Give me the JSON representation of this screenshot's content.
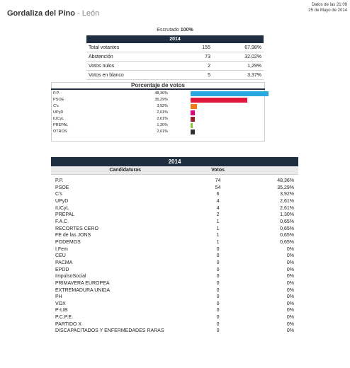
{
  "header": {
    "municipality": "Gordaliza del Pino",
    "province": "- León",
    "date_line1": "Datos de las 21:09",
    "date_line2": "25 de Mayo de 2014"
  },
  "summary": {
    "scrutinized_label": "Escrutado",
    "scrutinized_value": "100%",
    "year": "2014",
    "rows": [
      {
        "label": "Total votantes",
        "value": "155",
        "pct": "67,98%"
      },
      {
        "label": "Abstención",
        "value": "73",
        "pct": "32,02%"
      },
      {
        "label": "Votos nulos",
        "value": "2",
        "pct": "1,29%"
      },
      {
        "label": "Votos en blanco",
        "value": "5",
        "pct": "3,37%"
      }
    ]
  },
  "vote_share": {
    "title": "Porcentaje de votos",
    "rows": [
      {
        "label": "P.P.",
        "pct": "48,36%",
        "share": 48.36,
        "color": "#29a8e0"
      },
      {
        "label": "PSOE",
        "pct": "35,29%",
        "share": 35.29,
        "color": "#e2173d"
      },
      {
        "label": "C's",
        "pct": "3,92%",
        "share": 3.92,
        "color": "#f07d1a"
      },
      {
        "label": "UPyD",
        "pct": "2,61%",
        "share": 2.61,
        "color": "#e4007c"
      },
      {
        "label": "IUCyL",
        "pct": "2,61%",
        "share": 2.61,
        "color": "#9b1f2e"
      },
      {
        "label": "PREPAL",
        "pct": "1,30%",
        "share": 1.3,
        "color": "#8dc63f"
      },
      {
        "label": "OTROS",
        "pct": "2,61%",
        "share": 2.61,
        "color": "#333333"
      }
    ]
  },
  "results": {
    "year": "2014",
    "col_party": "Candidaturas",
    "col_votes": "Votos",
    "rows": [
      {
        "party": "P.P.",
        "votes": "74",
        "pct": "48,36%"
      },
      {
        "party": "PSOE",
        "votes": "54",
        "pct": "35,29%"
      },
      {
        "party": "C's",
        "votes": "6",
        "pct": "3,92%"
      },
      {
        "party": "UPyD",
        "votes": "4",
        "pct": "2,61%"
      },
      {
        "party": "IUCyL",
        "votes": "4",
        "pct": "2,61%"
      },
      {
        "party": "PREPAL",
        "votes": "2",
        "pct": "1,30%"
      },
      {
        "party": "F.A.C.",
        "votes": "1",
        "pct": "0,65%"
      },
      {
        "party": "RECORTES CERO",
        "votes": "1",
        "pct": "0,65%"
      },
      {
        "party": "FE de las JONS",
        "votes": "1",
        "pct": "0,65%"
      },
      {
        "party": "PODEMOS",
        "votes": "1",
        "pct": "0,65%"
      },
      {
        "party": "I.Fem",
        "votes": "0",
        "pct": "0%"
      },
      {
        "party": "CEU",
        "votes": "0",
        "pct": "0%"
      },
      {
        "party": "PACMA",
        "votes": "0",
        "pct": "0%"
      },
      {
        "party": "EPDD",
        "votes": "0",
        "pct": "0%"
      },
      {
        "party": "ImpulsoSocial",
        "votes": "0",
        "pct": "0%"
      },
      {
        "party": "PRIMAVERA EUROPEA",
        "votes": "0",
        "pct": "0%"
      },
      {
        "party": "EXTREMADURA UNIDA",
        "votes": "0",
        "pct": "0%"
      },
      {
        "party": "PH",
        "votes": "0",
        "pct": "0%"
      },
      {
        "party": "VOX",
        "votes": "0",
        "pct": "0%"
      },
      {
        "party": "P-LIB",
        "votes": "0",
        "pct": "0%"
      },
      {
        "party": "P.C.P.E.",
        "votes": "0",
        "pct": "0%"
      },
      {
        "party": "PARTIDO X",
        "votes": "0",
        "pct": "0%"
      },
      {
        "party": "DISCAPACITADOS Y ENFERMEDADES RARAS",
        "votes": "0",
        "pct": "0%"
      }
    ]
  }
}
